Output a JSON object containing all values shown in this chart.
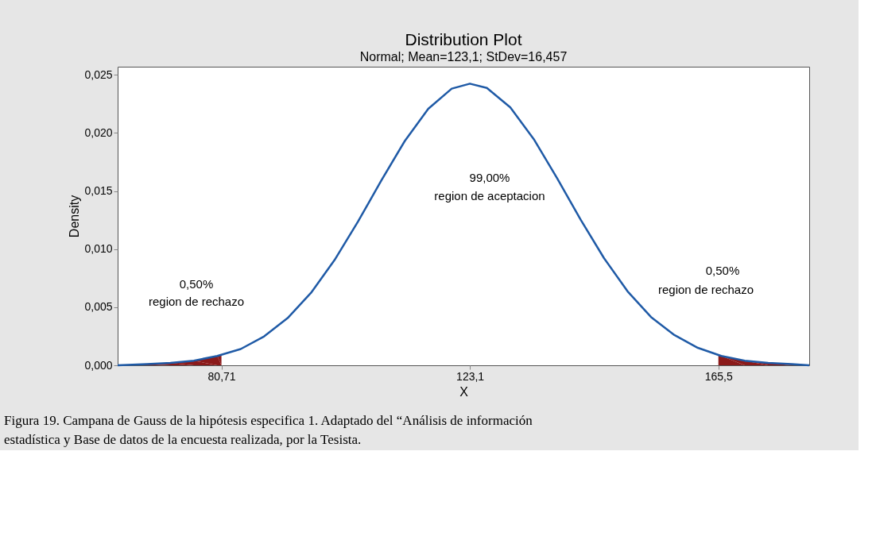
{
  "chart_data": {
    "type": "line",
    "title": "Distribution Plot",
    "subtitle": "Normal; Mean=123,1; StDev=16,457",
    "xlabel": "X",
    "ylabel": "Density",
    "xlim": [
      63,
      181
    ],
    "ylim": [
      0,
      0.0257
    ],
    "xticks": [
      {
        "value": 80.71,
        "label": "80,71"
      },
      {
        "value": 123.1,
        "label": "123,1"
      },
      {
        "value": 165.5,
        "label": "165,5"
      }
    ],
    "yticks": [
      {
        "value": 0,
        "label": "0,000"
      },
      {
        "value": 0.005,
        "label": "0,005"
      },
      {
        "value": 0.01,
        "label": "0,010"
      },
      {
        "value": 0.015,
        "label": "0,015"
      },
      {
        "value": 0.02,
        "label": "0,020"
      },
      {
        "value": 0.025,
        "label": "0,025"
      }
    ],
    "series": [
      {
        "type": "area",
        "color": "#8b1a1a",
        "x": [
          63,
          68,
          72,
          76,
          80,
          80.71
        ],
        "values": [
          0,
          0.0001,
          0.0002,
          0.0004,
          0.0008,
          0.0009
        ]
      },
      {
        "type": "area",
        "color": "#8b1a1a",
        "x": [
          165.5,
          170,
          174,
          178,
          181
        ],
        "values": [
          0.0009,
          0.0004,
          0.0002,
          0.0001,
          0
        ]
      },
      {
        "color": "#1f5aa6",
        "x": [
          63,
          68,
          72,
          76,
          80,
          84,
          88,
          92,
          96,
          100,
          104,
          108,
          112,
          116,
          120,
          123.1,
          126,
          130,
          134,
          138,
          142,
          146,
          150,
          154,
          158,
          162,
          166,
          170,
          174,
          178,
          181
        ],
        "values": [
          0,
          0.0001,
          0.0002,
          0.0004,
          0.0008,
          0.0014,
          0.00249,
          0.00406,
          0.00624,
          0.00905,
          0.01236,
          0.01591,
          0.01931,
          0.02208,
          0.02381,
          0.02424,
          0.02387,
          0.0222,
          0.01947,
          0.01609,
          0.01253,
          0.00921,
          0.00637,
          0.00416,
          0.0026,
          0.0015,
          0.0008,
          0.0004,
          0.0002,
          0.0001,
          0
        ]
      }
    ],
    "annotations": [
      "99,00%",
      "region de aceptacion",
      "0,50%",
      "region de rechazo",
      "0,50%",
      "region de rechazo",
      "Figura 19.  Campana de Gauss de la hipótesis especifica 1. Adaptado del “Análisis de información estadística y Base de datos de la encuesta realizada, por la Tesista."
    ],
    "grid": false,
    "marker": "none",
    "line_style": "solid"
  }
}
